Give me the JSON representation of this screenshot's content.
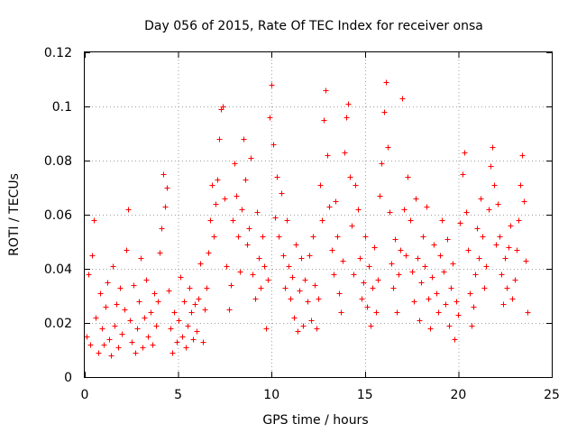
{
  "chart_data": {
    "type": "scatter",
    "title": "Day 056 of 2015, Rate Of TEC Index for receiver onsa",
    "xlabel": "GPS time / hours",
    "ylabel": "ROTI / TECUs",
    "xlim": [
      0,
      25
    ],
    "ylim": [
      0,
      0.12
    ],
    "xticks": [
      0,
      5,
      10,
      15,
      20,
      25
    ],
    "xtick_labels": [
      "0",
      "5",
      "10",
      "15",
      "20",
      "25"
    ],
    "yticks": [
      0,
      0.02,
      0.04,
      0.06,
      0.08,
      0.1,
      0.12
    ],
    "ytick_labels": [
      "0",
      "0.02",
      "0.04",
      "0.06",
      "0.08",
      "0.1",
      "0.12"
    ],
    "grid": true,
    "marker": "plus",
    "series": [
      {
        "name": "ROTI",
        "color": "#ff0000",
        "points": [
          [
            0.1,
            0.015
          ],
          [
            0.2,
            0.038
          ],
          [
            0.3,
            0.012
          ],
          [
            0.4,
            0.045
          ],
          [
            0.5,
            0.058
          ],
          [
            0.6,
            0.022
          ],
          [
            0.7,
            0.009
          ],
          [
            0.8,
            0.031
          ],
          [
            0.9,
            0.018
          ],
          [
            1.0,
            0.012
          ],
          [
            1.1,
            0.026
          ],
          [
            1.2,
            0.035
          ],
          [
            1.3,
            0.014
          ],
          [
            1.4,
            0.008
          ],
          [
            1.5,
            0.041
          ],
          [
            1.6,
            0.019
          ],
          [
            1.7,
            0.027
          ],
          [
            1.8,
            0.011
          ],
          [
            1.9,
            0.033
          ],
          [
            2.0,
            0.016
          ],
          [
            2.1,
            0.025
          ],
          [
            2.2,
            0.047
          ],
          [
            2.3,
            0.062
          ],
          [
            2.4,
            0.021
          ],
          [
            2.5,
            0.013
          ],
          [
            2.6,
            0.034
          ],
          [
            2.7,
            0.009
          ],
          [
            2.8,
            0.018
          ],
          [
            2.9,
            0.028
          ],
          [
            3.0,
            0.044
          ],
          [
            3.1,
            0.011
          ],
          [
            3.2,
            0.022
          ],
          [
            3.3,
            0.036
          ],
          [
            3.4,
            0.015
          ],
          [
            3.5,
            0.024
          ],
          [
            3.6,
            0.012
          ],
          [
            3.7,
            0.031
          ],
          [
            3.8,
            0.019
          ],
          [
            3.9,
            0.028
          ],
          [
            4.0,
            0.046
          ],
          [
            4.1,
            0.055
          ],
          [
            4.2,
            0.075
          ],
          [
            4.3,
            0.063
          ],
          [
            4.4,
            0.07
          ],
          [
            4.5,
            0.032
          ],
          [
            4.6,
            0.018
          ],
          [
            4.7,
            0.009
          ],
          [
            4.8,
            0.024
          ],
          [
            4.9,
            0.013
          ],
          [
            5.0,
            0.021
          ],
          [
            5.1,
            0.037
          ],
          [
            5.2,
            0.015
          ],
          [
            5.3,
            0.028
          ],
          [
            5.4,
            0.011
          ],
          [
            5.5,
            0.019
          ],
          [
            5.6,
            0.033
          ],
          [
            5.7,
            0.024
          ],
          [
            5.8,
            0.014
          ],
          [
            5.9,
            0.027
          ],
          [
            6.0,
            0.017
          ],
          [
            6.1,
            0.029
          ],
          [
            6.2,
            0.042
          ],
          [
            6.3,
            0.013
          ],
          [
            6.4,
            0.025
          ],
          [
            6.5,
            0.033
          ],
          [
            6.6,
            0.046
          ],
          [
            6.7,
            0.058
          ],
          [
            6.8,
            0.071
          ],
          [
            6.9,
            0.052
          ],
          [
            7.0,
            0.064
          ],
          [
            7.1,
            0.073
          ],
          [
            7.2,
            0.088
          ],
          [
            7.3,
            0.099
          ],
          [
            7.4,
            0.1
          ],
          [
            7.5,
            0.066
          ],
          [
            7.6,
            0.041
          ],
          [
            7.7,
            0.025
          ],
          [
            7.8,
            0.034
          ],
          [
            7.9,
            0.058
          ],
          [
            8.0,
            0.079
          ],
          [
            8.1,
            0.067
          ],
          [
            8.2,
            0.052
          ],
          [
            8.3,
            0.039
          ],
          [
            8.4,
            0.062
          ],
          [
            8.5,
            0.088
          ],
          [
            8.6,
            0.073
          ],
          [
            8.7,
            0.049
          ],
          [
            8.8,
            0.055
          ],
          [
            8.9,
            0.081
          ],
          [
            9.0,
            0.038
          ],
          [
            9.1,
            0.029
          ],
          [
            9.2,
            0.061
          ],
          [
            9.3,
            0.044
          ],
          [
            9.4,
            0.033
          ],
          [
            9.5,
            0.052
          ],
          [
            9.6,
            0.041
          ],
          [
            9.7,
            0.018
          ],
          [
            9.8,
            0.036
          ],
          [
            9.9,
            0.096
          ],
          [
            10.0,
            0.108
          ],
          [
            10.1,
            0.086
          ],
          [
            10.2,
            0.059
          ],
          [
            10.3,
            0.074
          ],
          [
            10.4,
            0.052
          ],
          [
            10.5,
            0.068
          ],
          [
            10.6,
            0.045
          ],
          [
            10.7,
            0.033
          ],
          [
            10.8,
            0.058
          ],
          [
            10.9,
            0.041
          ],
          [
            11.0,
            0.029
          ],
          [
            11.1,
            0.037
          ],
          [
            11.2,
            0.022
          ],
          [
            11.3,
            0.049
          ],
          [
            11.4,
            0.017
          ],
          [
            11.5,
            0.032
          ],
          [
            11.6,
            0.044
          ],
          [
            11.7,
            0.019
          ],
          [
            11.8,
            0.036
          ],
          [
            11.9,
            0.028
          ],
          [
            12.0,
            0.045
          ],
          [
            12.1,
            0.021
          ],
          [
            12.2,
            0.052
          ],
          [
            12.3,
            0.034
          ],
          [
            12.4,
            0.018
          ],
          [
            12.5,
            0.029
          ],
          [
            12.6,
            0.071
          ],
          [
            12.7,
            0.058
          ],
          [
            12.8,
            0.095
          ],
          [
            12.9,
            0.106
          ],
          [
            13.0,
            0.082
          ],
          [
            13.1,
            0.063
          ],
          [
            13.2,
            0.047
          ],
          [
            13.3,
            0.038
          ],
          [
            13.4,
            0.065
          ],
          [
            13.5,
            0.052
          ],
          [
            13.6,
            0.031
          ],
          [
            13.7,
            0.024
          ],
          [
            13.8,
            0.043
          ],
          [
            13.9,
            0.083
          ],
          [
            14.0,
            0.096
          ],
          [
            14.1,
            0.101
          ],
          [
            14.2,
            0.074
          ],
          [
            14.3,
            0.056
          ],
          [
            14.4,
            0.038
          ],
          [
            14.5,
            0.071
          ],
          [
            14.6,
            0.062
          ],
          [
            14.7,
            0.044
          ],
          [
            14.8,
            0.029
          ],
          [
            14.9,
            0.035
          ],
          [
            15.0,
            0.052
          ],
          [
            15.1,
            0.026
          ],
          [
            15.2,
            0.041
          ],
          [
            15.3,
            0.019
          ],
          [
            15.4,
            0.033
          ],
          [
            15.5,
            0.048
          ],
          [
            15.6,
            0.024
          ],
          [
            15.7,
            0.036
          ],
          [
            15.8,
            0.067
          ],
          [
            15.9,
            0.079
          ],
          [
            16.0,
            0.098
          ],
          [
            16.1,
            0.109
          ],
          [
            16.2,
            0.085
          ],
          [
            16.3,
            0.061
          ],
          [
            16.4,
            0.042
          ],
          [
            16.5,
            0.033
          ],
          [
            16.6,
            0.051
          ],
          [
            16.7,
            0.024
          ],
          [
            16.8,
            0.038
          ],
          [
            16.9,
            0.047
          ],
          [
            17.0,
            0.103
          ],
          [
            17.1,
            0.062
          ],
          [
            17.2,
            0.045
          ],
          [
            17.3,
            0.074
          ],
          [
            17.4,
            0.058
          ],
          [
            17.5,
            0.039
          ],
          [
            17.6,
            0.028
          ],
          [
            17.7,
            0.066
          ],
          [
            17.8,
            0.044
          ],
          [
            17.9,
            0.021
          ],
          [
            18.0,
            0.035
          ],
          [
            18.1,
            0.052
          ],
          [
            18.2,
            0.041
          ],
          [
            18.3,
            0.063
          ],
          [
            18.4,
            0.029
          ],
          [
            18.5,
            0.018
          ],
          [
            18.6,
            0.037
          ],
          [
            18.7,
            0.049
          ],
          [
            18.8,
            0.031
          ],
          [
            18.9,
            0.024
          ],
          [
            19.0,
            0.045
          ],
          [
            19.1,
            0.058
          ],
          [
            19.2,
            0.039
          ],
          [
            19.3,
            0.027
          ],
          [
            19.4,
            0.051
          ],
          [
            19.5,
            0.019
          ],
          [
            19.6,
            0.033
          ],
          [
            19.7,
            0.042
          ],
          [
            19.8,
            0.014
          ],
          [
            19.9,
            0.028
          ],
          [
            20.0,
            0.023
          ],
          [
            20.1,
            0.057
          ],
          [
            20.2,
            0.075
          ],
          [
            20.3,
            0.083
          ],
          [
            20.4,
            0.061
          ],
          [
            20.5,
            0.047
          ],
          [
            20.6,
            0.031
          ],
          [
            20.7,
            0.019
          ],
          [
            20.8,
            0.026
          ],
          [
            20.9,
            0.038
          ],
          [
            21.0,
            0.055
          ],
          [
            21.1,
            0.044
          ],
          [
            21.2,
            0.066
          ],
          [
            21.3,
            0.052
          ],
          [
            21.4,
            0.033
          ],
          [
            21.5,
            0.041
          ],
          [
            21.6,
            0.062
          ],
          [
            21.7,
            0.078
          ],
          [
            21.8,
            0.085
          ],
          [
            21.9,
            0.071
          ],
          [
            22.0,
            0.049
          ],
          [
            22.1,
            0.064
          ],
          [
            22.2,
            0.052
          ],
          [
            22.3,
            0.038
          ],
          [
            22.4,
            0.027
          ],
          [
            22.5,
            0.044
          ],
          [
            22.6,
            0.033
          ],
          [
            22.7,
            0.048
          ],
          [
            22.8,
            0.056
          ],
          [
            22.9,
            0.029
          ],
          [
            23.0,
            0.036
          ],
          [
            23.1,
            0.047
          ],
          [
            23.2,
            0.058
          ],
          [
            23.3,
            0.071
          ],
          [
            23.4,
            0.082
          ],
          [
            23.5,
            0.065
          ],
          [
            23.6,
            0.043
          ],
          [
            23.7,
            0.024
          ]
        ]
      }
    ]
  }
}
